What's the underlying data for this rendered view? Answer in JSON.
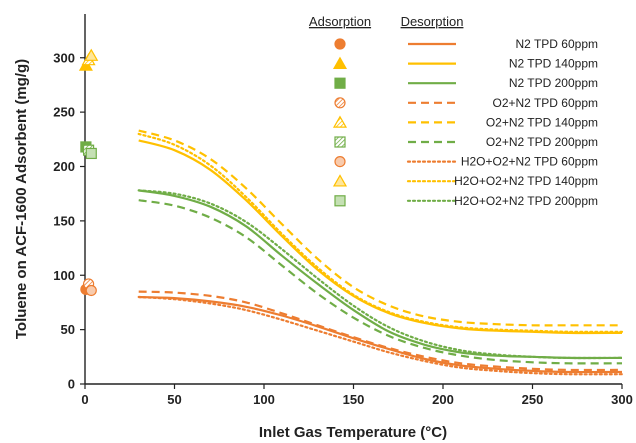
{
  "chart_data": {
    "type": "line",
    "xlabel": "Inlet Gas Temperature (°C)",
    "ylabel": "Toluene on ACF-1600 Adsorbent (mg/g)",
    "xlim": [
      0,
      300
    ],
    "ylim": [
      0,
      320
    ],
    "xticks": [
      0,
      50,
      100,
      150,
      200,
      250,
      300
    ],
    "yticks": [
      0,
      50,
      100,
      150,
      200,
      250,
      300
    ],
    "grid": false,
    "legend_placement": "top-right",
    "legend_headers": {
      "adsorption": "Adsorption",
      "desorption": "Desorption"
    },
    "colors": {
      "orange": "#ED7D31",
      "yellow": "#FFC000",
      "green": "#70AD47"
    },
    "adsorption_points": [
      {
        "name": "N2 TPD 60ppm",
        "x": 0.5,
        "y": 87,
        "color": "#ED7D31",
        "marker": "circle",
        "fill": "solid"
      },
      {
        "name": "N2 TPD 140ppm",
        "x": 0.5,
        "y": 293,
        "color": "#FFC000",
        "marker": "triangle",
        "fill": "solid"
      },
      {
        "name": "N2 TPD 200ppm",
        "x": 0.5,
        "y": 218,
        "color": "#70AD47",
        "marker": "square",
        "fill": "solid"
      },
      {
        "name": "O2+N2 TPD 60ppm",
        "x": 2,
        "y": 92,
        "color": "#ED7D31",
        "marker": "circle",
        "fill": "hatched"
      },
      {
        "name": "O2+N2 TPD 140ppm",
        "x": 2,
        "y": 298,
        "color": "#FFC000",
        "marker": "triangle",
        "fill": "hatched"
      },
      {
        "name": "O2+N2 TPD 200ppm",
        "x": 2,
        "y": 215,
        "color": "#70AD47",
        "marker": "square",
        "fill": "hatched"
      },
      {
        "name": "H2O+O2+N2 TPD 60ppm",
        "x": 3.5,
        "y": 86,
        "color": "#ED7D31",
        "marker": "circle",
        "fill": "light"
      },
      {
        "name": "H2O+O2+N2 TPD 140ppm",
        "x": 3.5,
        "y": 302,
        "color": "#FFC000",
        "marker": "triangle",
        "fill": "light"
      },
      {
        "name": "H2O+O2+N2 TPD 200ppm",
        "x": 3.5,
        "y": 212,
        "color": "#70AD47",
        "marker": "square",
        "fill": "light"
      }
    ],
    "series": [
      {
        "name": "N2 TPD 60ppm",
        "color": "#ED7D31",
        "style": "solid",
        "x": [
          30,
          50,
          70,
          90,
          110,
          130,
          150,
          170,
          190,
          210,
          230,
          250,
          270,
          300
        ],
        "y": [
          80,
          79,
          76,
          71,
          63,
          53,
          42,
          32,
          23,
          17,
          14,
          12,
          11,
          11
        ]
      },
      {
        "name": "N2 TPD 140ppm",
        "color": "#FFC000",
        "style": "solid",
        "x": [
          30,
          50,
          70,
          90,
          110,
          130,
          150,
          170,
          190,
          210,
          230,
          250,
          270,
          300
        ],
        "y": [
          224,
          215,
          197,
          169,
          136,
          105,
          81,
          65,
          56,
          51,
          49,
          48,
          47,
          47
        ]
      },
      {
        "name": "N2 TPD 200ppm",
        "color": "#70AD47",
        "style": "solid",
        "x": [
          30,
          50,
          70,
          90,
          110,
          130,
          150,
          170,
          190,
          210,
          230,
          250,
          270,
          300
        ],
        "y": [
          178,
          173,
          163,
          145,
          118,
          92,
          68,
          48,
          36,
          29,
          26,
          25,
          24,
          24
        ]
      },
      {
        "name": "O2+N2 TPD 60ppm",
        "color": "#ED7D31",
        "style": "dashed",
        "x": [
          30,
          50,
          70,
          90,
          110,
          130,
          150,
          170,
          190,
          210,
          230,
          250,
          270,
          300
        ],
        "y": [
          85,
          84,
          81,
          75,
          65,
          54,
          43,
          33,
          25,
          19,
          16,
          14,
          13,
          13
        ]
      },
      {
        "name": "O2+N2 TPD 140ppm",
        "color": "#FFC000",
        "style": "dashed",
        "x": [
          30,
          50,
          70,
          90,
          110,
          130,
          150,
          170,
          190,
          210,
          230,
          250,
          270,
          300
        ],
        "y": [
          233,
          224,
          207,
          180,
          147,
          115,
          89,
          72,
          62,
          57,
          55,
          54,
          54,
          54
        ]
      },
      {
        "name": "O2+N2 TPD 200ppm",
        "color": "#70AD47",
        "style": "dashed",
        "x": [
          30,
          50,
          70,
          90,
          110,
          130,
          150,
          170,
          190,
          210,
          230,
          250,
          270,
          300
        ],
        "y": [
          169,
          164,
          153,
          135,
          109,
          83,
          61,
          44,
          33,
          26,
          22,
          20,
          19,
          19
        ]
      },
      {
        "name": "H2O+O2+N2 TPD 60ppm",
        "color": "#ED7D31",
        "style": "dotted",
        "x": [
          30,
          50,
          70,
          90,
          110,
          130,
          150,
          170,
          190,
          210,
          230,
          250,
          270,
          300
        ],
        "y": [
          80,
          78,
          74,
          68,
          59,
          49,
          39,
          29,
          21,
          15,
          12,
          10,
          9,
          9
        ]
      },
      {
        "name": "H2O+O2+N2 TPD 140ppm",
        "color": "#FFC000",
        "style": "dotted",
        "x": [
          30,
          50,
          70,
          90,
          110,
          130,
          150,
          170,
          190,
          210,
          230,
          250,
          270,
          300
        ],
        "y": [
          230,
          220,
          201,
          172,
          138,
          107,
          82,
          66,
          57,
          52,
          50,
          49,
          48,
          48
        ]
      },
      {
        "name": "H2O+O2+N2 TPD 200ppm",
        "color": "#70AD47",
        "style": "dotted",
        "x": [
          30,
          50,
          70,
          90,
          110,
          130,
          150,
          170,
          190,
          210,
          230,
          250,
          270,
          300
        ],
        "y": [
          178,
          175,
          166,
          149,
          124,
          97,
          72,
          52,
          39,
          31,
          27,
          25,
          24,
          24
        ]
      }
    ]
  }
}
